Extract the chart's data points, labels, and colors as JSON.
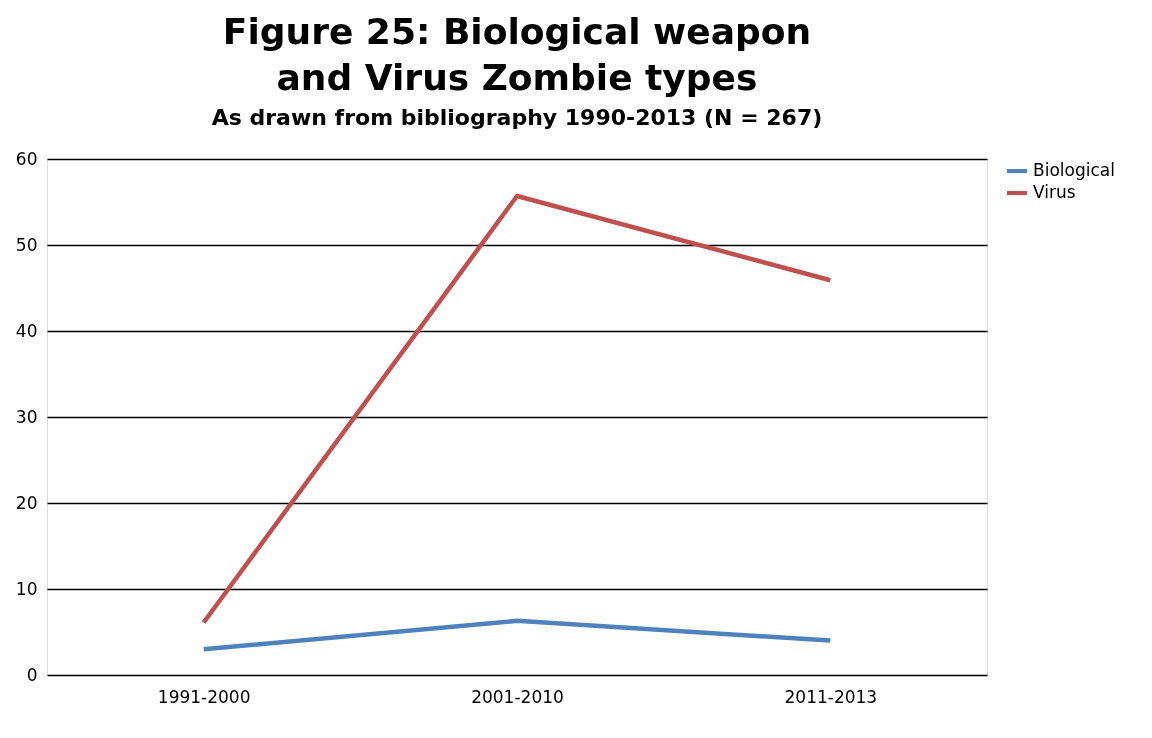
{
  "chart_data": {
    "type": "line",
    "title": "Figure 25: Biological weapon and Virus Zombie types",
    "subtitle": "As drawn from bibliography 1990-2013 (N = 267)",
    "categories": [
      "1991-2000",
      "2001-2010",
      "2011-2013"
    ],
    "series": [
      {
        "name": "Biological",
        "color": "#4f81bd",
        "values": [
          3,
          6.3,
          4
        ]
      },
      {
        "name": "Virus",
        "color": "#c0504d",
        "values": [
          6.1,
          55.7,
          45.9
        ]
      }
    ],
    "ylim": [
      0,
      60
    ],
    "yticks": [
      0,
      10,
      20,
      30,
      40,
      50,
      60
    ],
    "grid": "y",
    "legend": "right",
    "marker": "none",
    "line_style": "solid"
  }
}
